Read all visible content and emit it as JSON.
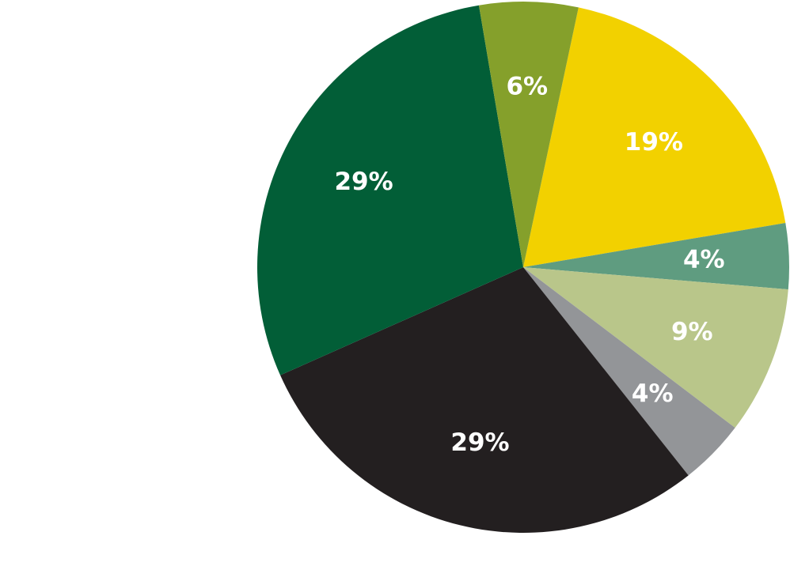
{
  "chart_data": {
    "type": "pie",
    "start_angle_deg": -78,
    "direction": "clockwise",
    "slices": [
      {
        "value": 19,
        "label": "19%",
        "color": "#f2d100"
      },
      {
        "value": 4,
        "label": "4%",
        "color": "#5f9c80"
      },
      {
        "value": 9,
        "label": "9%",
        "color": "#b9c68a"
      },
      {
        "value": 4,
        "label": "4%",
        "color": "#939598"
      },
      {
        "value": 29,
        "label": "29%",
        "color": "#231f20"
      },
      {
        "value": 29,
        "label": "29%",
        "color": "#025e37"
      },
      {
        "value": 6,
        "label": "6%",
        "color": "#85a02b"
      }
    ]
  }
}
